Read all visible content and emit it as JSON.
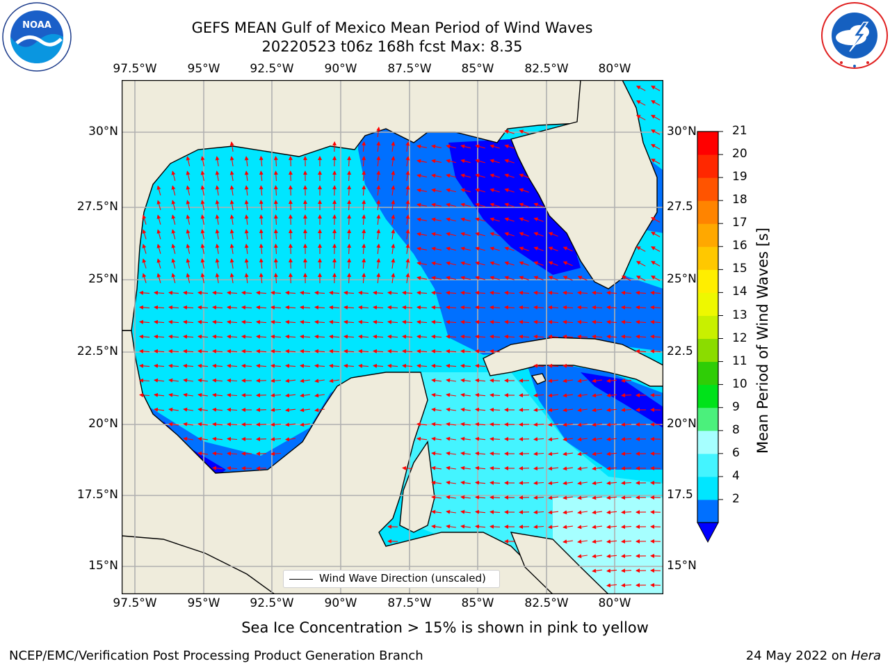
{
  "header": {
    "title_line1": "GEFS MEAN Gulf of Mexico Mean Period of Wind Waves",
    "title_line2": "20220523 t06z 168h fcst   Max: 8.35"
  },
  "logos": {
    "noaa_text": "NOAA",
    "noaa_ring": "NATIONAL OCEANIC AND ATMOSPHERIC ADMINISTRATION · U.S. DEPARTMENT OF COMMERCE",
    "nws_ring": "NATIONAL WEATHER SERVICE"
  },
  "map": {
    "lon_labels": [
      "97.5°W",
      "95°W",
      "92.5°W",
      "90°W",
      "87.5°W",
      "85°W",
      "82.5°W",
      "80°W"
    ],
    "lat_labels_left": [
      "30°N",
      "27.5°N",
      "25°N",
      "22.5°N",
      "20°N",
      "17.5°N",
      "15°N"
    ],
    "lat_labels_right": [
      "30°N",
      "27.5",
      "25°N",
      "22.5",
      "20°N",
      "17.5",
      "15°N"
    ],
    "legend_label": "Wind Wave Direction (unscaled)",
    "land_color": "#efecdc",
    "arrow_color": "#ff0000",
    "gridline_color": "#b0b0b0"
  },
  "colorbar": {
    "label": "Mean Period of Wind Waves [s]",
    "ticks": [
      "21",
      "20",
      "19",
      "18",
      "17",
      "16",
      "15",
      "14",
      "13",
      "12",
      "11",
      "10",
      "9",
      "8",
      "6",
      "4",
      "2"
    ],
    "colors_bottom_to_top": [
      "#0000ff",
      "#0070ff",
      "#00e6ff",
      "#44f4ff",
      "#a6ffff",
      "#4bf07c",
      "#00e21a",
      "#2fcd06",
      "#8bdc00",
      "#c8f000",
      "#eef800",
      "#ffee00",
      "#ffc800",
      "#ffa800",
      "#ff8400",
      "#ff5400",
      "#ff2800",
      "#ff0000"
    ]
  },
  "notes": {
    "sea_ice": "Sea Ice Concentration > 15% is shown in pink to yellow"
  },
  "footer": {
    "left": "NCEP/EMC/Verification Post Processing Product Generation Branch",
    "date": "24 May 2022 on ",
    "machine": "Hera"
  }
}
